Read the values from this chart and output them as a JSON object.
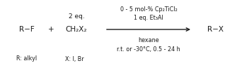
{
  "background_color": "#ffffff",
  "figsize": [
    3.35,
    0.97
  ],
  "dpi": 100,
  "reactant_left": "R−F",
  "plus": "+",
  "reagent_above_arrow_1": "0 - 5 mol-% Cp₂TiCl₂",
  "reagent_above_arrow_2": "1 eq. Et₃Al",
  "reagent_below_arrow_1": "hexane",
  "reagent_below_arrow_2": "r.t. or -30°C, 0.5 - 24 h",
  "ch2x2_top": "2 eq.",
  "ch2x2": "CH₂X₂",
  "product": "R−X",
  "label_left": "R: alkyl",
  "label_x": "X: I, Br",
  "text_color": "#1a1a1a",
  "font_size_main": 7.5,
  "font_size_small": 6.5,
  "font_size_label": 5.8
}
